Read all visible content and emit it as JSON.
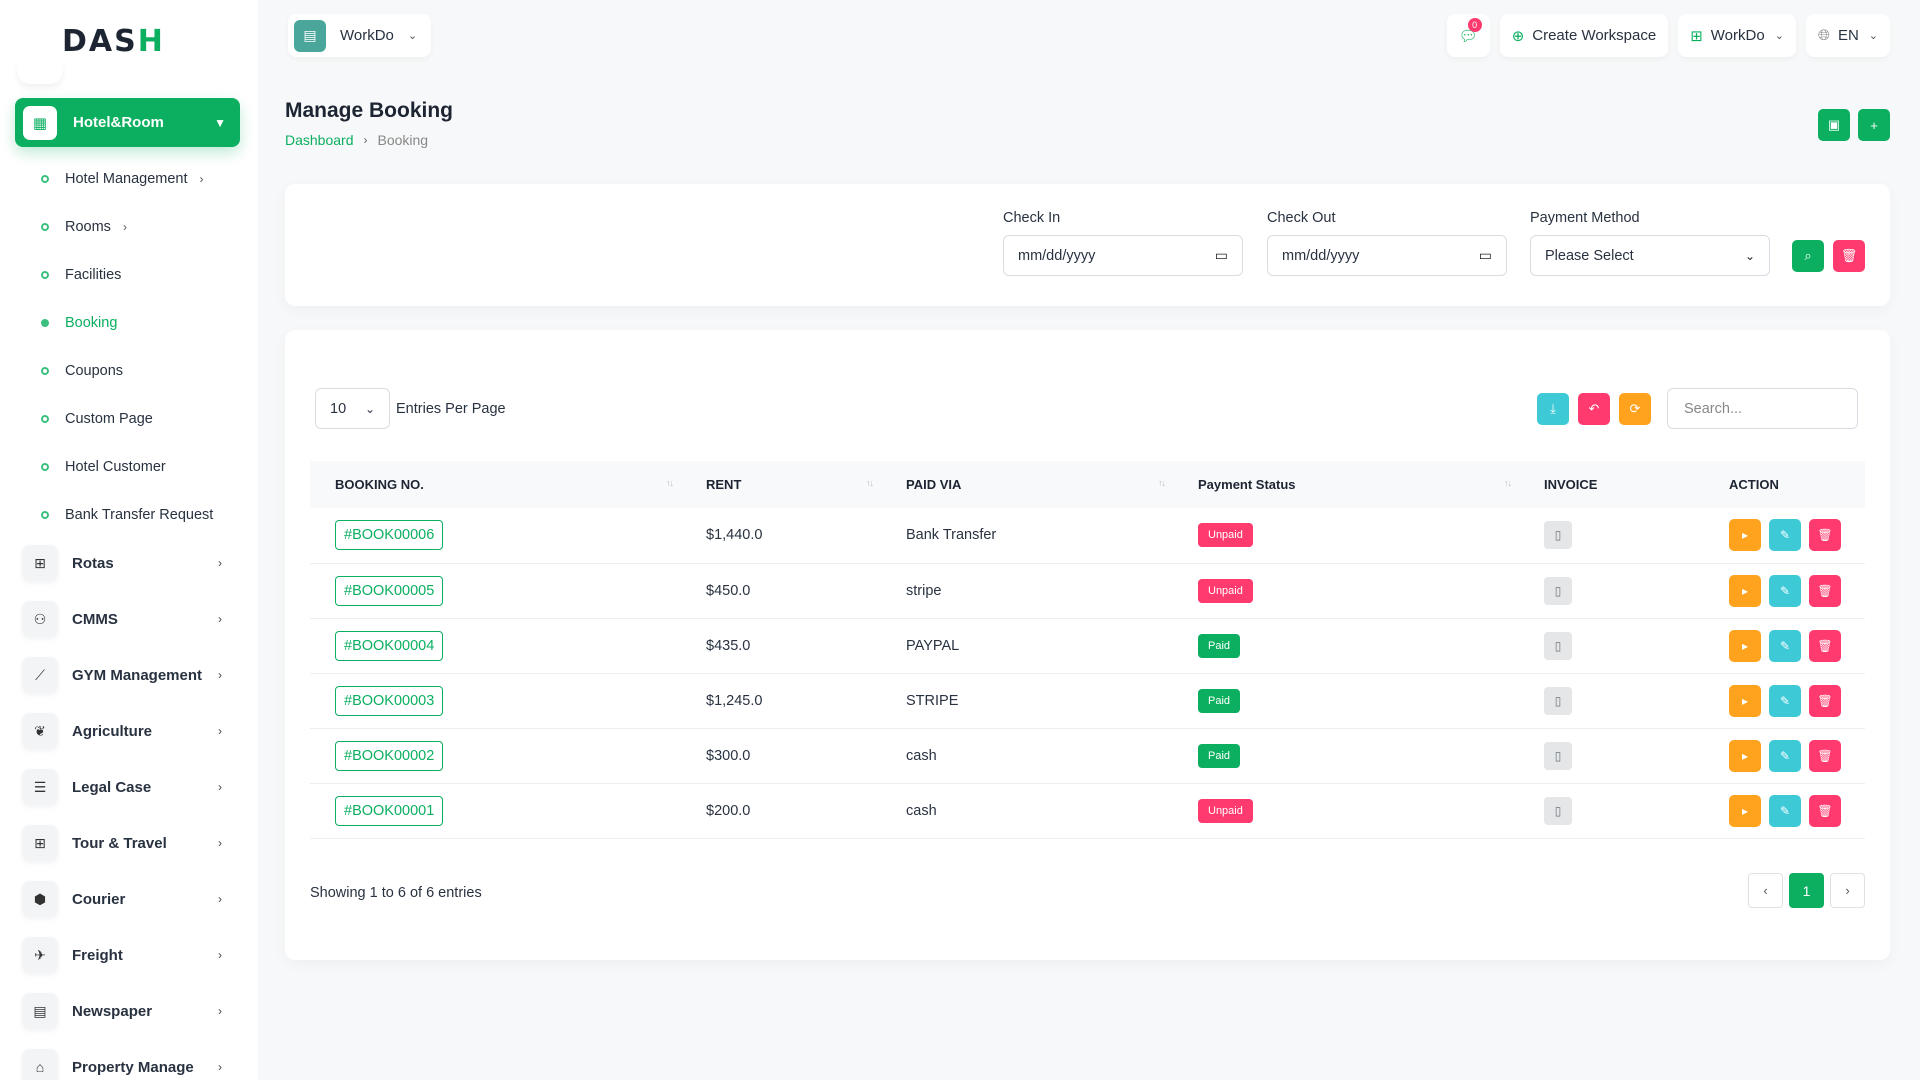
{
  "brand": {
    "logo_main": "DAS",
    "logo_accent": "H"
  },
  "sidebar": {
    "active_module": {
      "label": "Hotel&Room",
      "icon": "building-icon"
    },
    "sub_items": [
      {
        "label": "Hotel Management",
        "has_children": true,
        "active": false
      },
      {
        "label": "Rooms",
        "has_children": true,
        "active": false
      },
      {
        "label": "Facilities",
        "has_children": false,
        "active": false
      },
      {
        "label": "Booking",
        "has_children": false,
        "active": true
      },
      {
        "label": "Coupons",
        "has_children": false,
        "active": false
      },
      {
        "label": "Custom Page",
        "has_children": false,
        "active": false
      },
      {
        "label": "Hotel Customer",
        "has_children": false,
        "active": false
      },
      {
        "label": "Bank Transfer Request",
        "has_children": false,
        "active": false
      }
    ],
    "modules": [
      {
        "label": "Rotas",
        "icon": "grid-icon"
      },
      {
        "label": "CMMS",
        "icon": "nodes-icon"
      },
      {
        "label": "GYM Management",
        "icon": "dumbbell-icon"
      },
      {
        "label": "Agriculture",
        "icon": "plant-icon"
      },
      {
        "label": "Legal Case",
        "icon": "list-icon"
      },
      {
        "label": "Tour & Travel",
        "icon": "grid-icon"
      },
      {
        "label": "Courier",
        "icon": "box-icon"
      },
      {
        "label": "Freight",
        "icon": "plane-icon"
      },
      {
        "label": "Newspaper",
        "icon": "newspaper-icon"
      },
      {
        "label": "Property Manage",
        "icon": "property-icon"
      }
    ]
  },
  "header": {
    "workspace_name": "WorkDo",
    "message_count": "0",
    "create_workspace_label": "Create Workspace",
    "workspace_switch_label": "WorkDo",
    "language": "EN"
  },
  "page": {
    "title": "Manage Booking",
    "breadcrumb_home": "Dashboard",
    "breadcrumb_current": "Booking"
  },
  "filters": {
    "check_in_label": "Check In",
    "check_in_placeholder": "mm/dd/yyyy",
    "check_out_label": "Check Out",
    "check_out_placeholder": "mm/dd/yyyy",
    "payment_method_label": "Payment Method",
    "payment_method_value": "Please Select"
  },
  "table": {
    "entries_value": "10",
    "entries_label": "Entries Per Page",
    "search_placeholder": "Search...",
    "columns": [
      "BOOKING NO.",
      "RENT",
      "PAID VIA",
      "Payment Status",
      "INVOICE",
      "ACTION"
    ],
    "rows": [
      {
        "booking_no": "#BOOK00006",
        "rent": "$1,440.0",
        "paid_via": "Bank Transfer",
        "status": "Unpaid"
      },
      {
        "booking_no": "#BOOK00005",
        "rent": "$450.0",
        "paid_via": "stripe",
        "status": "Unpaid"
      },
      {
        "booking_no": "#BOOK00004",
        "rent": "$435.0",
        "paid_via": "PAYPAL",
        "status": "Paid"
      },
      {
        "booking_no": "#BOOK00003",
        "rent": "$1,245.0",
        "paid_via": "STRIPE",
        "status": "Paid"
      },
      {
        "booking_no": "#BOOK00002",
        "rent": "$300.0",
        "paid_via": "cash",
        "status": "Paid"
      },
      {
        "booking_no": "#BOOK00001",
        "rent": "$200.0",
        "paid_via": "cash",
        "status": "Unpaid"
      }
    ],
    "showing_text": "Showing 1 to 6 of 6 entries",
    "current_page": "1"
  },
  "colors": {
    "primary": "#0caf60",
    "danger": "#ff3a6e",
    "info": "#3ec9d6",
    "warning": "#ffa21d"
  }
}
